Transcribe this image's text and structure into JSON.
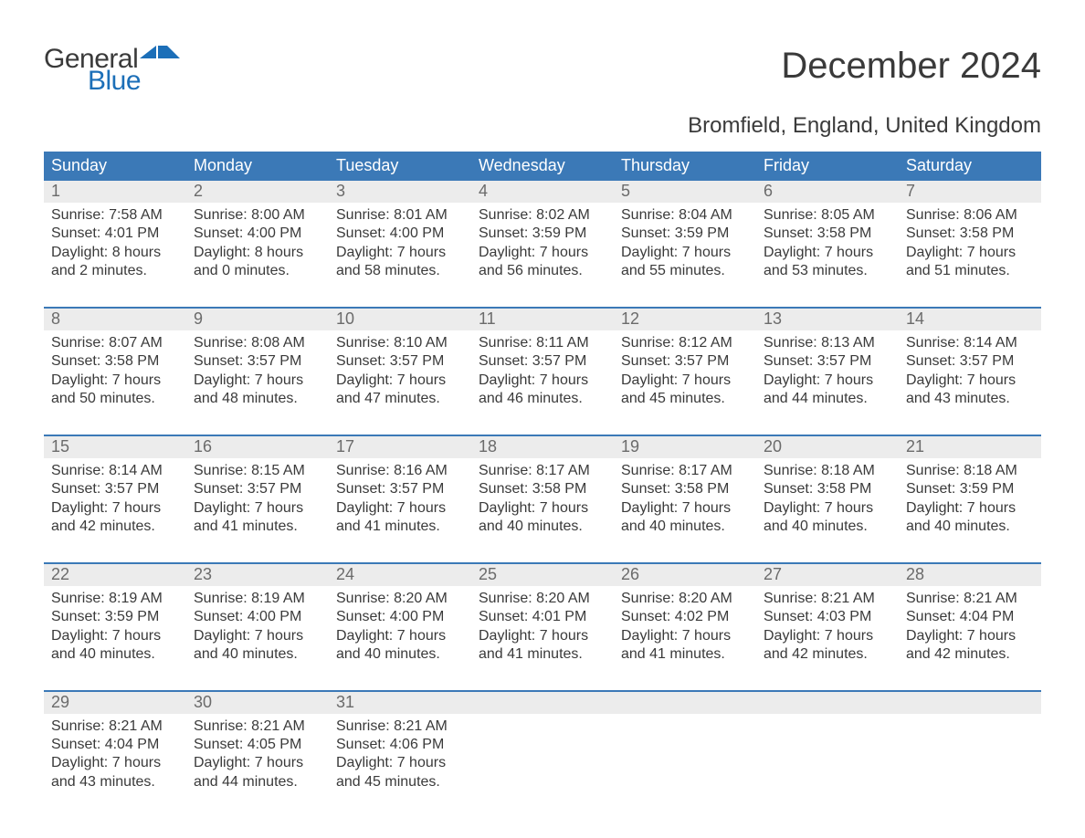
{
  "logo": {
    "text1": "General",
    "text2": "Blue",
    "flag_color": "#1c6fb8"
  },
  "title": "December 2024",
  "subtitle": "Bromfield, England, United Kingdom",
  "colors": {
    "header_bg": "#3b79b7",
    "header_text": "#ffffff",
    "daynum_bg": "#ececec",
    "daynum_text": "#6b6b6b",
    "body_text": "#3a3a3a",
    "week_border": "#3b79b7",
    "logo_blue": "#1c6fb8"
  },
  "typography": {
    "title_fontsize": 40,
    "subtitle_fontsize": 24,
    "dayhead_fontsize": 18,
    "daynum_fontsize": 18,
    "body_fontsize": 16
  },
  "day_labels": [
    "Sunday",
    "Monday",
    "Tuesday",
    "Wednesday",
    "Thursday",
    "Friday",
    "Saturday"
  ],
  "weeks": [
    [
      {
        "num": "1",
        "sunrise": "Sunrise: 7:58 AM",
        "sunset": "Sunset: 4:01 PM",
        "d1": "Daylight: 8 hours",
        "d2": "and 2 minutes."
      },
      {
        "num": "2",
        "sunrise": "Sunrise: 8:00 AM",
        "sunset": "Sunset: 4:00 PM",
        "d1": "Daylight: 8 hours",
        "d2": "and 0 minutes."
      },
      {
        "num": "3",
        "sunrise": "Sunrise: 8:01 AM",
        "sunset": "Sunset: 4:00 PM",
        "d1": "Daylight: 7 hours",
        "d2": "and 58 minutes."
      },
      {
        "num": "4",
        "sunrise": "Sunrise: 8:02 AM",
        "sunset": "Sunset: 3:59 PM",
        "d1": "Daylight: 7 hours",
        "d2": "and 56 minutes."
      },
      {
        "num": "5",
        "sunrise": "Sunrise: 8:04 AM",
        "sunset": "Sunset: 3:59 PM",
        "d1": "Daylight: 7 hours",
        "d2": "and 55 minutes."
      },
      {
        "num": "6",
        "sunrise": "Sunrise: 8:05 AM",
        "sunset": "Sunset: 3:58 PM",
        "d1": "Daylight: 7 hours",
        "d2": "and 53 minutes."
      },
      {
        "num": "7",
        "sunrise": "Sunrise: 8:06 AM",
        "sunset": "Sunset: 3:58 PM",
        "d1": "Daylight: 7 hours",
        "d2": "and 51 minutes."
      }
    ],
    [
      {
        "num": "8",
        "sunrise": "Sunrise: 8:07 AM",
        "sunset": "Sunset: 3:58 PM",
        "d1": "Daylight: 7 hours",
        "d2": "and 50 minutes."
      },
      {
        "num": "9",
        "sunrise": "Sunrise: 8:08 AM",
        "sunset": "Sunset: 3:57 PM",
        "d1": "Daylight: 7 hours",
        "d2": "and 48 minutes."
      },
      {
        "num": "10",
        "sunrise": "Sunrise: 8:10 AM",
        "sunset": "Sunset: 3:57 PM",
        "d1": "Daylight: 7 hours",
        "d2": "and 47 minutes."
      },
      {
        "num": "11",
        "sunrise": "Sunrise: 8:11 AM",
        "sunset": "Sunset: 3:57 PM",
        "d1": "Daylight: 7 hours",
        "d2": "and 46 minutes."
      },
      {
        "num": "12",
        "sunrise": "Sunrise: 8:12 AM",
        "sunset": "Sunset: 3:57 PM",
        "d1": "Daylight: 7 hours",
        "d2": "and 45 minutes."
      },
      {
        "num": "13",
        "sunrise": "Sunrise: 8:13 AM",
        "sunset": "Sunset: 3:57 PM",
        "d1": "Daylight: 7 hours",
        "d2": "and 44 minutes."
      },
      {
        "num": "14",
        "sunrise": "Sunrise: 8:14 AM",
        "sunset": "Sunset: 3:57 PM",
        "d1": "Daylight: 7 hours",
        "d2": "and 43 minutes."
      }
    ],
    [
      {
        "num": "15",
        "sunrise": "Sunrise: 8:14 AM",
        "sunset": "Sunset: 3:57 PM",
        "d1": "Daylight: 7 hours",
        "d2": "and 42 minutes."
      },
      {
        "num": "16",
        "sunrise": "Sunrise: 8:15 AM",
        "sunset": "Sunset: 3:57 PM",
        "d1": "Daylight: 7 hours",
        "d2": "and 41 minutes."
      },
      {
        "num": "17",
        "sunrise": "Sunrise: 8:16 AM",
        "sunset": "Sunset: 3:57 PM",
        "d1": "Daylight: 7 hours",
        "d2": "and 41 minutes."
      },
      {
        "num": "18",
        "sunrise": "Sunrise: 8:17 AM",
        "sunset": "Sunset: 3:58 PM",
        "d1": "Daylight: 7 hours",
        "d2": "and 40 minutes."
      },
      {
        "num": "19",
        "sunrise": "Sunrise: 8:17 AM",
        "sunset": "Sunset: 3:58 PM",
        "d1": "Daylight: 7 hours",
        "d2": "and 40 minutes."
      },
      {
        "num": "20",
        "sunrise": "Sunrise: 8:18 AM",
        "sunset": "Sunset: 3:58 PM",
        "d1": "Daylight: 7 hours",
        "d2": "and 40 minutes."
      },
      {
        "num": "21",
        "sunrise": "Sunrise: 8:18 AM",
        "sunset": "Sunset: 3:59 PM",
        "d1": "Daylight: 7 hours",
        "d2": "and 40 minutes."
      }
    ],
    [
      {
        "num": "22",
        "sunrise": "Sunrise: 8:19 AM",
        "sunset": "Sunset: 3:59 PM",
        "d1": "Daylight: 7 hours",
        "d2": "and 40 minutes."
      },
      {
        "num": "23",
        "sunrise": "Sunrise: 8:19 AM",
        "sunset": "Sunset: 4:00 PM",
        "d1": "Daylight: 7 hours",
        "d2": "and 40 minutes."
      },
      {
        "num": "24",
        "sunrise": "Sunrise: 8:20 AM",
        "sunset": "Sunset: 4:00 PM",
        "d1": "Daylight: 7 hours",
        "d2": "and 40 minutes."
      },
      {
        "num": "25",
        "sunrise": "Sunrise: 8:20 AM",
        "sunset": "Sunset: 4:01 PM",
        "d1": "Daylight: 7 hours",
        "d2": "and 41 minutes."
      },
      {
        "num": "26",
        "sunrise": "Sunrise: 8:20 AM",
        "sunset": "Sunset: 4:02 PM",
        "d1": "Daylight: 7 hours",
        "d2": "and 41 minutes."
      },
      {
        "num": "27",
        "sunrise": "Sunrise: 8:21 AM",
        "sunset": "Sunset: 4:03 PM",
        "d1": "Daylight: 7 hours",
        "d2": "and 42 minutes."
      },
      {
        "num": "28",
        "sunrise": "Sunrise: 8:21 AM",
        "sunset": "Sunset: 4:04 PM",
        "d1": "Daylight: 7 hours",
        "d2": "and 42 minutes."
      }
    ],
    [
      {
        "num": "29",
        "sunrise": "Sunrise: 8:21 AM",
        "sunset": "Sunset: 4:04 PM",
        "d1": "Daylight: 7 hours",
        "d2": "and 43 minutes."
      },
      {
        "num": "30",
        "sunrise": "Sunrise: 8:21 AM",
        "sunset": "Sunset: 4:05 PM",
        "d1": "Daylight: 7 hours",
        "d2": "and 44 minutes."
      },
      {
        "num": "31",
        "sunrise": "Sunrise: 8:21 AM",
        "sunset": "Sunset: 4:06 PM",
        "d1": "Daylight: 7 hours",
        "d2": "and 45 minutes."
      },
      null,
      null,
      null,
      null
    ]
  ]
}
